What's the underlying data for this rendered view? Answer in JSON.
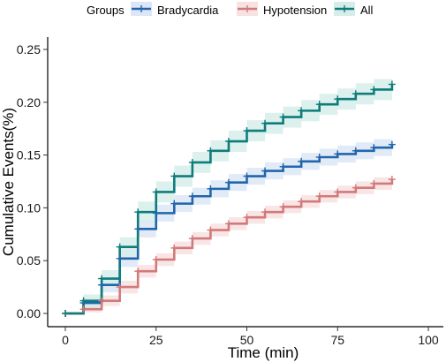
{
  "chart_data": {
    "type": "line",
    "subtype": "cumulative-step-with-confidence-band",
    "title": "",
    "xlabel": "Time (min)",
    "ylabel": "Cumulative Events(%)",
    "xlim": [
      0,
      100
    ],
    "ylim": [
      0,
      0.25
    ],
    "x_ticks": [
      0,
      25,
      50,
      75,
      100
    ],
    "y_ticks": [
      0.0,
      0.05,
      0.1,
      0.15,
      0.2,
      0.25
    ],
    "x_tick_labels": [
      "0",
      "25",
      "50",
      "75",
      "100"
    ],
    "y_tick_labels": [
      "0.00",
      "0.05",
      "0.10",
      "0.15",
      "0.20",
      "0.25"
    ],
    "grid": false,
    "legend": {
      "title": "Groups",
      "position": "top",
      "entries": [
        "Bradycardia",
        "Hypotension",
        "All"
      ]
    },
    "x": [
      0,
      5,
      10,
      15,
      20,
      25,
      30,
      35,
      40,
      45,
      50,
      55,
      60,
      65,
      70,
      75,
      80,
      85,
      90
    ],
    "series": [
      {
        "name": "Bradycardia",
        "color": "#2166AC",
        "band_color": "#DCE6F6",
        "values": [
          0,
          0.01,
          0.027,
          0.052,
          0.08,
          0.095,
          0.104,
          0.111,
          0.118,
          0.124,
          0.13,
          0.135,
          0.139,
          0.144,
          0.148,
          0.151,
          0.154,
          0.157,
          0.16
        ],
        "ci_half_width": [
          0,
          0.005,
          0.007,
          0.008,
          0.008,
          0.008,
          0.008,
          0.008,
          0.008,
          0.008,
          0.008,
          0.008,
          0.008,
          0.008,
          0.008,
          0.008,
          0.008,
          0.008,
          0.008
        ]
      },
      {
        "name": "Hypotension",
        "color": "#D17A7A",
        "band_color": "#F8E1E1",
        "values": [
          0,
          0.004,
          0.012,
          0.025,
          0.04,
          0.051,
          0.062,
          0.071,
          0.079,
          0.085,
          0.091,
          0.096,
          0.101,
          0.106,
          0.111,
          0.115,
          0.119,
          0.123,
          0.127
        ],
        "ci_half_width": [
          0,
          0.003,
          0.005,
          0.006,
          0.006,
          0.006,
          0.006,
          0.006,
          0.006,
          0.006,
          0.006,
          0.006,
          0.006,
          0.006,
          0.006,
          0.006,
          0.006,
          0.006,
          0.006
        ]
      },
      {
        "name": "All",
        "color": "#0E7C7B",
        "band_color": "#D6EDEA",
        "values": [
          0,
          0.012,
          0.033,
          0.063,
          0.096,
          0.115,
          0.13,
          0.143,
          0.154,
          0.163,
          0.173,
          0.18,
          0.186,
          0.192,
          0.198,
          0.203,
          0.208,
          0.212,
          0.217
        ],
        "ci_half_width": [
          0,
          0.006,
          0.008,
          0.009,
          0.01,
          0.01,
          0.01,
          0.01,
          0.01,
          0.01,
          0.01,
          0.01,
          0.01,
          0.01,
          0.01,
          0.01,
          0.01,
          0.01,
          0.01
        ]
      }
    ]
  }
}
